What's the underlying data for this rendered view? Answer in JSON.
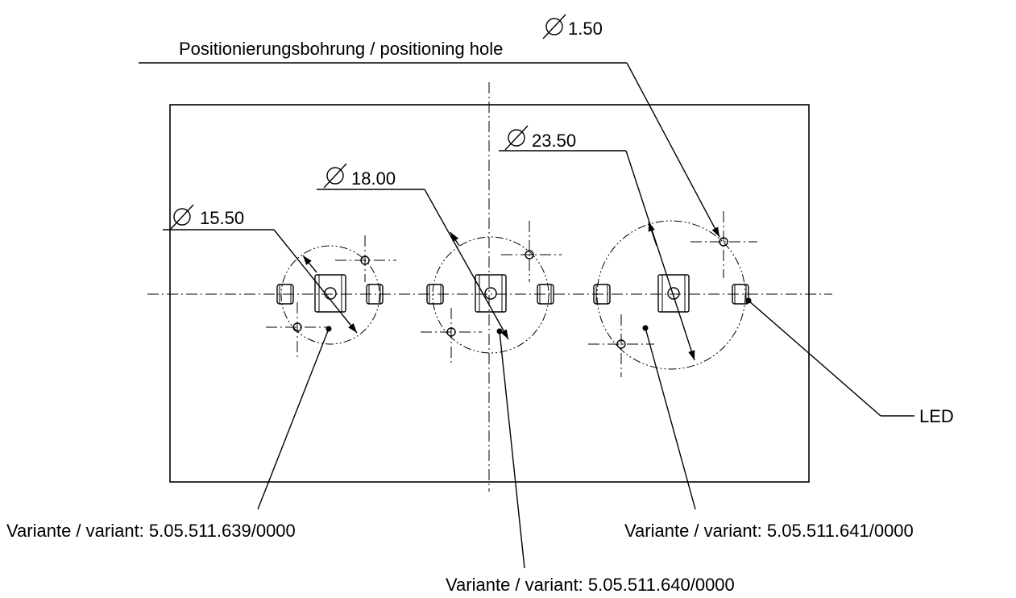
{
  "title": {
    "diameter_symbol": "⌀",
    "hole_diameter": "1.50",
    "hole_label": "Positionierungsbohrung / positioning hole"
  },
  "dimensions": {
    "d1": "15.50",
    "d2": "18.00",
    "d3": "23.50"
  },
  "labels": {
    "led": "LED",
    "variant_left": "Variante / variant: 5.05.511.639/0000",
    "variant_middle": "Variante / variant: 5.05.511.640/0000",
    "variant_right": "Variante / variant: 5.05.511.641/0000"
  }
}
